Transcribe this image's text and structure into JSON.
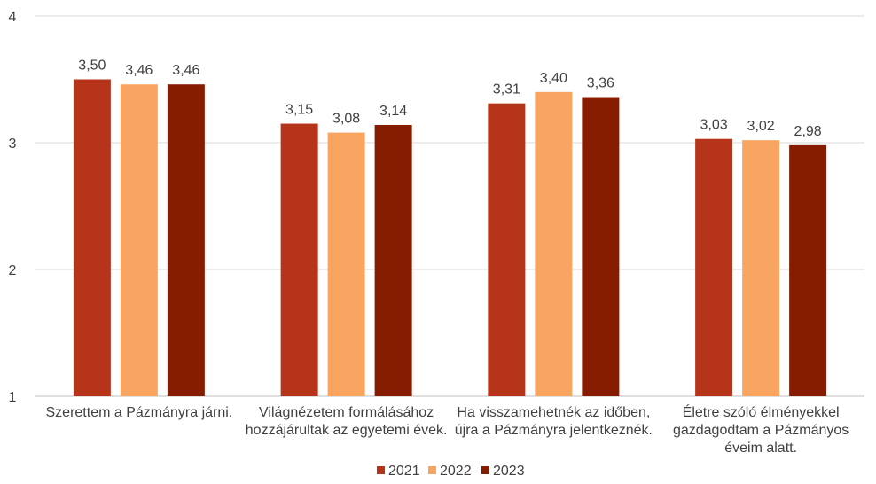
{
  "chart_data": {
    "type": "bar",
    "title": "",
    "xlabel": "",
    "ylabel": "",
    "ylim": [
      1,
      4
    ],
    "yticks": [
      "1",
      "2",
      "3",
      "4"
    ],
    "grid": true,
    "legend_position": "bottom",
    "categories": [
      [
        "Szerettem a Pázmányra járni."
      ],
      [
        "Világnézetem formálásához",
        "hozzájárultak az egyetemi évek."
      ],
      [
        "Ha visszamehetnék az időben,",
        "újra a Pázmányra jelentkeznék."
      ],
      [
        "Életre szóló élményekkel",
        "gazdagodtam a Pázmányos",
        "éveim alatt."
      ]
    ],
    "series": [
      {
        "name": "2021",
        "color": "#B5341A",
        "values": [
          3.5,
          3.15,
          3.31,
          3.03
        ],
        "labels": [
          "3,50",
          "3,15",
          "3,31",
          "3,03"
        ]
      },
      {
        "name": "2022",
        "color": "#F9A562",
        "values": [
          3.46,
          3.08,
          3.4,
          3.02
        ],
        "labels": [
          "3,46",
          "3,08",
          "3,40",
          "3,02"
        ]
      },
      {
        "name": "2023",
        "color": "#861C00",
        "values": [
          3.46,
          3.14,
          3.36,
          2.98
        ],
        "labels": [
          "3,46",
          "3,14",
          "3,36",
          "2,98"
        ]
      }
    ]
  }
}
